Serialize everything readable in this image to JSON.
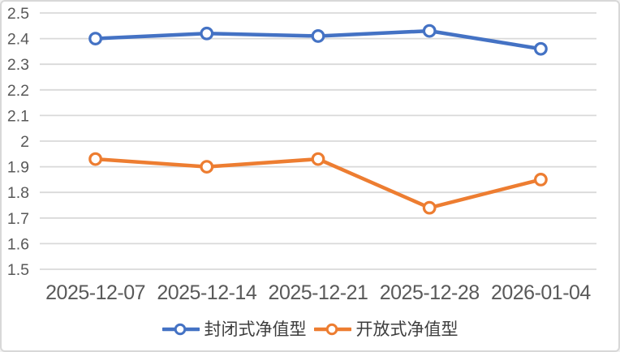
{
  "chart": {
    "background": "#ffffff",
    "frame_border_color": "#d8d8d8",
    "grid_color": "#d9d9d9",
    "axis_label_color": "#595959",
    "legend_text_color": "#3d3d3d"
  },
  "chart_data": {
    "type": "line",
    "categories": [
      "2025-12-07",
      "2025-12-14",
      "2025-12-21",
      "2025-12-28",
      "2026-01-04"
    ],
    "series": [
      {
        "name": "封闭式净值型",
        "color": "#4472c4",
        "values": [
          2.4,
          2.42,
          2.41,
          2.43,
          2.36
        ]
      },
      {
        "name": "开放式净值型",
        "color": "#ed7d31",
        "values": [
          1.93,
          1.9,
          1.93,
          1.74,
          1.85
        ]
      }
    ],
    "title": "",
    "xlabel": "",
    "ylabel": "",
    "ylim": [
      1.5,
      2.5
    ],
    "ytick_step": 0.1,
    "ytick_labels": [
      "1.5",
      "1.6",
      "1.7",
      "1.8",
      "1.9",
      "2",
      "2.1",
      "2.2",
      "2.3",
      "2.4",
      "2.5"
    ],
    "grid": true,
    "legend_position": "bottom",
    "marker": "open-circle"
  }
}
